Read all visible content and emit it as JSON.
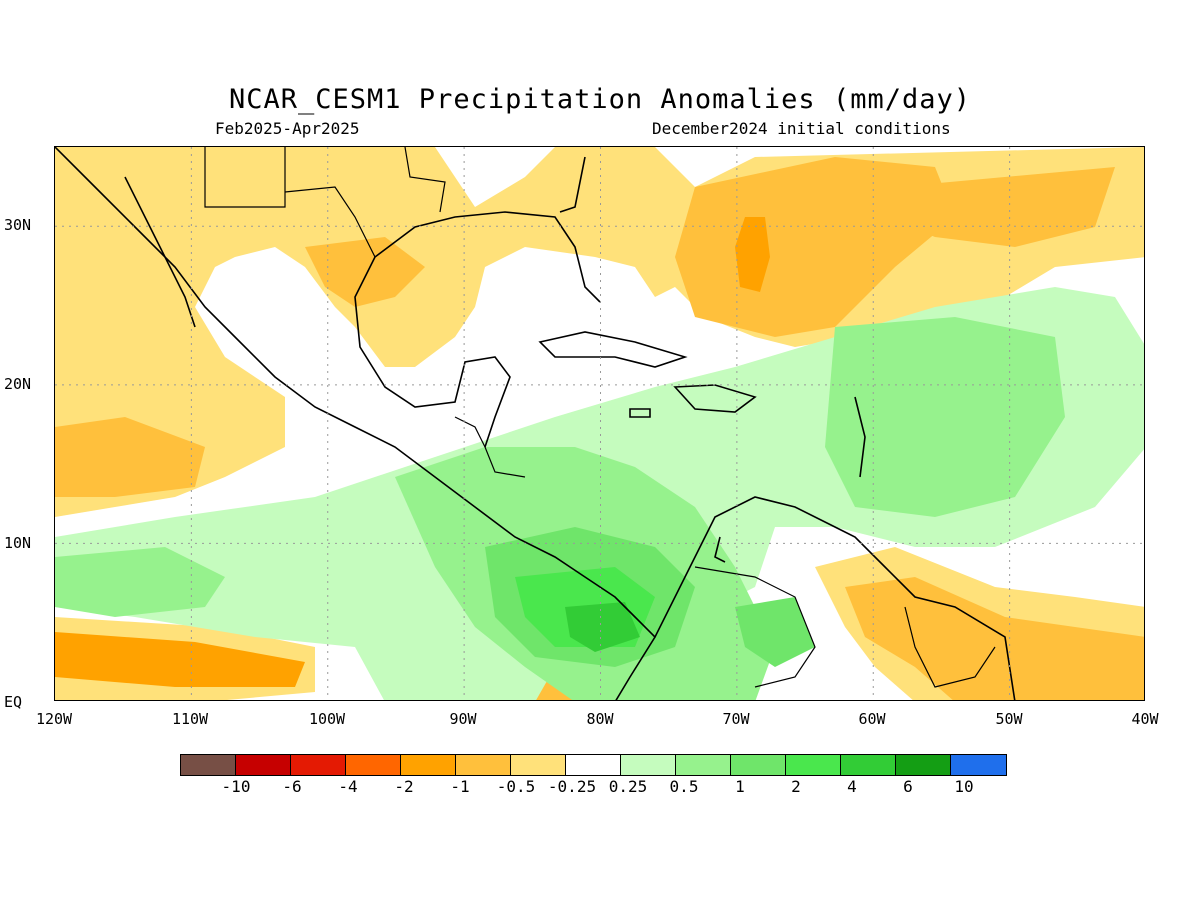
{
  "header": {
    "title": "NCAR_CESM1 Precipitation Anomalies (mm/day)",
    "period": "Feb2025-Apr2025",
    "init": "December2024 initial conditions"
  },
  "map": {
    "lat_labels": [
      "30N",
      "20N",
      "10N",
      "EQ"
    ],
    "lon_labels": [
      "120W",
      "110W",
      "100W",
      "90W",
      "80W",
      "70W",
      "60W",
      "50W",
      "40W"
    ],
    "lon_range": [
      -120,
      -40
    ],
    "lat_range": [
      0,
      35
    ],
    "grid": "dotted"
  },
  "colors": {
    "lt_-10": "#774f45",
    "-10_-6": "#c60000",
    "-6_-4": "#e41a03",
    "-4_-2": "#ff6600",
    "-2_-1": "#ffa200",
    "-1_-0.5": "#ffc03c",
    "-0.5_-0.25": "#ffe17a",
    "-0.25_0.25": "#ffffff",
    "0.25_0.5": "#c5fcbe",
    "0.5_1": "#96f28d",
    "1_2": "#6fe56a",
    "2_4": "#4ae74d",
    "4_6": "#32cc36",
    "6_10": "#149e14",
    "gt_10": "#1f6fec"
  },
  "colorbar": {
    "ticks": [
      "-10",
      "-6",
      "-4",
      "-2",
      "-1",
      "-0.5",
      "-0.25",
      "0.25",
      "0.5",
      "1",
      "2",
      "4",
      "6",
      "10"
    ]
  }
}
